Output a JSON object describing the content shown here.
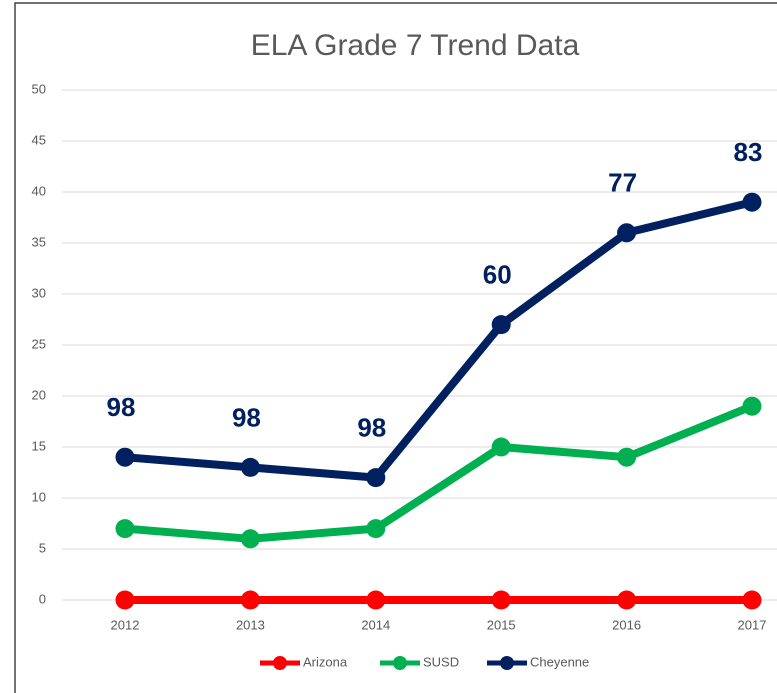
{
  "chart_data": {
    "type": "line",
    "title": "ELA Grade 7 Trend Data",
    "categories": [
      "2012",
      "2013",
      "2014",
      "2015",
      "2016",
      "2017"
    ],
    "series": [
      {
        "name": "Arizona",
        "color": "#ff0000",
        "values": [
          0,
          0,
          0,
          0,
          0,
          0
        ]
      },
      {
        "name": "SUSD",
        "color": "#00b050",
        "values": [
          7,
          6,
          7,
          15,
          14,
          19
        ]
      },
      {
        "name": "Cheyenne",
        "color": "#002060",
        "values": [
          14,
          13,
          12,
          27,
          36,
          39
        ]
      }
    ],
    "annotations": [
      "98",
      "98",
      "98",
      "60",
      "77",
      "83"
    ],
    "ylim": [
      0,
      50
    ],
    "yticks": [
      0,
      5,
      10,
      15,
      20,
      25,
      30,
      35,
      40,
      45,
      50
    ],
    "grid": true,
    "legend": "bottom"
  }
}
